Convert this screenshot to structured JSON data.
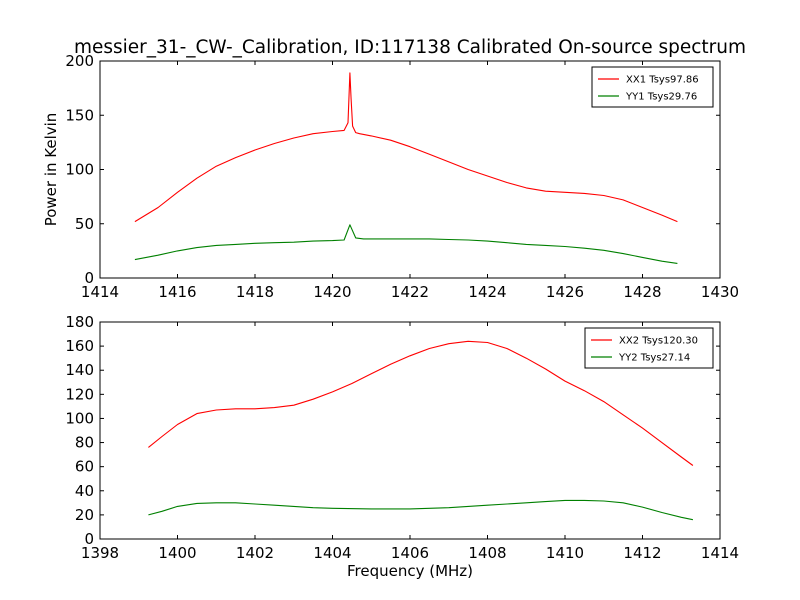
{
  "title": "messier_31-_CW-_Calibration, ID:117138 Calibrated On-source spectrum",
  "colors": {
    "xx": "#ff0000",
    "yy": "#008000"
  },
  "chart_data": [
    {
      "type": "line",
      "title": "messier_31-_CW-_Calibration, ID:117138 Calibrated On-source spectrum",
      "xlabel": "",
      "ylabel": "Power in Kelvin",
      "xlim": [
        1414,
        1430
      ],
      "ylim": [
        0,
        200
      ],
      "xticks": [
        "1414",
        "1416",
        "1418",
        "1420",
        "1422",
        "1424",
        "1426",
        "1428",
        "1430"
      ],
      "yticks": [
        "0",
        "50",
        "100",
        "150",
        "200"
      ],
      "legend": "top-right",
      "series": [
        {
          "name": "XX1 Tsys97.86",
          "color": "#ff0000",
          "x": [
            1414.9,
            1415.5,
            1416,
            1416.5,
            1417,
            1417.5,
            1418,
            1418.5,
            1419,
            1419.5,
            1420,
            1420.3,
            1420.4,
            1420.45,
            1420.48,
            1420.52,
            1420.6,
            1420.7,
            1421,
            1421.5,
            1422,
            1422.5,
            1423,
            1423.5,
            1424,
            1424.5,
            1425,
            1425.5,
            1426,
            1426.5,
            1427,
            1427.5,
            1428,
            1428.5,
            1428.9
          ],
          "values": [
            52,
            65,
            79,
            92,
            103,
            111,
            118,
            124,
            129,
            133,
            135,
            136,
            143,
            189,
            165,
            140,
            134,
            133,
            131,
            127,
            121,
            114,
            107,
            100,
            94,
            88,
            83,
            80,
            79,
            78,
            76,
            72,
            65,
            58,
            52
          ]
        },
        {
          "name": "YY1 Tsys29.76",
          "color": "#008000",
          "x": [
            1414.9,
            1415.5,
            1416,
            1416.5,
            1417,
            1417.5,
            1418,
            1418.5,
            1419,
            1419.5,
            1420,
            1420.3,
            1420.45,
            1420.6,
            1420.8,
            1421.5,
            1422,
            1422.5,
            1423,
            1423.5,
            1424,
            1424.5,
            1425,
            1425.5,
            1426,
            1426.5,
            1427,
            1427.5,
            1428,
            1428.5,
            1428.9
          ],
          "values": [
            17,
            21,
            25,
            28,
            30,
            31,
            32,
            32.5,
            33,
            34,
            34.5,
            35,
            49,
            37,
            36,
            36,
            36,
            36,
            35.5,
            35,
            34,
            32.5,
            31,
            30,
            29,
            27.5,
            25.5,
            22.5,
            19,
            15.5,
            13.5
          ]
        }
      ]
    },
    {
      "type": "line",
      "title": "",
      "xlabel": "Frequency (MHz)",
      "ylabel": "",
      "xlim": [
        1398,
        1414
      ],
      "ylim": [
        0,
        180
      ],
      "xticks": [
        "1398",
        "1400",
        "1402",
        "1404",
        "1406",
        "1408",
        "1410",
        "1412",
        "1414"
      ],
      "yticks": [
        "0",
        "20",
        "40",
        "60",
        "80",
        "100",
        "120",
        "140",
        "160",
        "180"
      ],
      "legend": "top-right",
      "series": [
        {
          "name": "XX2 Tsys120.30",
          "color": "#ff0000",
          "x": [
            1399.25,
            1399.6,
            1400,
            1400.5,
            1401,
            1401.5,
            1402,
            1402.5,
            1403,
            1403.5,
            1404,
            1404.5,
            1405,
            1405.5,
            1406,
            1406.5,
            1407,
            1407.5,
            1408,
            1408.5,
            1409,
            1409.5,
            1410,
            1410.5,
            1411,
            1411.5,
            1412,
            1412.5,
            1413,
            1413.3
          ],
          "values": [
            76,
            85,
            95,
            104,
            107,
            108,
            108,
            109,
            111,
            116,
            122,
            129,
            137,
            145,
            152,
            158,
            162,
            164,
            163,
            158,
            150,
            141,
            131,
            123,
            114,
            103,
            92,
            80,
            68,
            61
          ]
        },
        {
          "name": "YY2 Tsys27.14",
          "color": "#008000",
          "x": [
            1399.25,
            1399.6,
            1400,
            1400.5,
            1401,
            1401.5,
            1402,
            1402.5,
            1403,
            1403.5,
            1404,
            1405,
            1406,
            1407,
            1408,
            1409,
            1409.5,
            1410,
            1410.5,
            1411,
            1411.5,
            1412,
            1412.5,
            1413,
            1413.3
          ],
          "values": [
            20,
            23,
            27,
            29.5,
            30,
            30,
            29,
            28,
            27,
            26,
            25.5,
            25,
            25,
            26,
            28,
            30,
            31,
            32,
            32,
            31.5,
            30,
            26.5,
            22,
            18,
            16
          ]
        }
      ]
    }
  ]
}
